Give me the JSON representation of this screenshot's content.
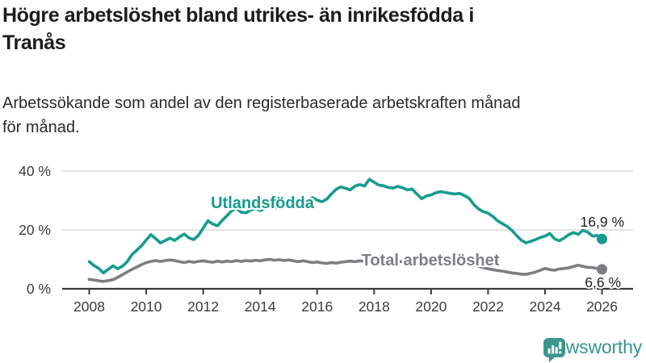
{
  "page": {
    "title_lines": [
      "Högre arbetslöshet bland utrikes- än inrikesfödda i",
      "Tranås"
    ],
    "subtitle_lines": [
      "Arbetssökande som andel av den registerbaserade arbetskraften månad",
      "för månad."
    ]
  },
  "chart_data": {
    "type": "line",
    "title": "Högre arbetslöshet bland utrikes- än inrikesfödda i Tranås",
    "subtitle": "Arbetssökande som andel av den registerbaserade arbetskraften månad för månad.",
    "xlabel": "",
    "ylabel": "",
    "x_ticks": [
      "2008",
      "2010",
      "2012",
      "2014",
      "2016",
      "2018",
      "2020",
      "2022",
      "2024",
      "2026"
    ],
    "y_ticks": [
      {
        "label": "0 %",
        "value": 0
      },
      {
        "label": "20 %",
        "value": 20
      },
      {
        "label": "40 %",
        "value": 40
      }
    ],
    "x_range": [
      2008,
      2026.1
    ],
    "ylim": [
      0,
      44
    ],
    "grid": "horizontal",
    "legend_position": "inline-labels",
    "x_start": 2008,
    "x_step": 0.1666667,
    "series": [
      {
        "name": "Utlandsfödda",
        "color": "#169b8e",
        "end_label": "16,9 %",
        "end_value": 16.9,
        "values": [
          9.2,
          7.9,
          6.9,
          5.4,
          6.6,
          7.8,
          6.8,
          7.7,
          9.2,
          11.6,
          13.1,
          14.6,
          16.6,
          18.4,
          17.0,
          15.6,
          16.4,
          17.2,
          16.4,
          17.6,
          18.6,
          17.3,
          16.7,
          18.1,
          20.6,
          23.1,
          22.0,
          21.4,
          23.2,
          24.8,
          26.5,
          27.3,
          26.0,
          25.8,
          26.7,
          27.2,
          26.6,
          27.2,
          27.8,
          27.3,
          27.9,
          28.3,
          27.9,
          28.4,
          28.9,
          29.4,
          30.2,
          31.0,
          30.1,
          29.6,
          30.4,
          32.2,
          33.8,
          34.6,
          34.1,
          33.6,
          34.9,
          35.4,
          34.9,
          37.2,
          36.2,
          35.2,
          35.0,
          34.4,
          34.2,
          34.8,
          34.3,
          33.6,
          33.9,
          32.2,
          30.6,
          31.5,
          31.9,
          32.6,
          33.0,
          32.7,
          32.4,
          32.2,
          32.4,
          31.7,
          30.7,
          28.6,
          27.1,
          26.2,
          25.7,
          24.6,
          23.1,
          22.1,
          21.2,
          19.9,
          18.1,
          16.5,
          15.6,
          16.1,
          16.7,
          17.4,
          17.9,
          18.8,
          17.0,
          16.3,
          17.2,
          18.4,
          19.1,
          18.5,
          19.9,
          19.2,
          17.9,
          18.1,
          16.9
        ]
      },
      {
        "name": "Total arbetslöshet",
        "color": "#7d7d82",
        "end_label": "6,6 %",
        "end_value": 6.6,
        "values": [
          3.2,
          3.0,
          2.7,
          2.5,
          2.8,
          3.1,
          3.9,
          4.8,
          5.7,
          6.6,
          7.4,
          8.2,
          8.9,
          9.3,
          9.6,
          9.3,
          9.6,
          9.8,
          9.6,
          9.2,
          8.9,
          9.3,
          9.0,
          9.3,
          9.5,
          9.2,
          9.0,
          9.4,
          9.1,
          9.4,
          9.2,
          9.6,
          9.3,
          9.6,
          9.4,
          9.7,
          9.5,
          9.8,
          10.0,
          9.7,
          9.9,
          9.6,
          9.8,
          9.5,
          9.2,
          9.5,
          9.2,
          8.9,
          9.1,
          8.8,
          8.6,
          8.9,
          8.7,
          9.0,
          9.2,
          9.4,
          9.2,
          9.5,
          9.3,
          9.6,
          9.4,
          9.6,
          9.3,
          9.5,
          9.2,
          9.4,
          9.1,
          8.9,
          9.2,
          8.9,
          8.7,
          9.0,
          9.2,
          9.6,
          9.9,
          9.7,
          9.4,
          9.2,
          9.0,
          8.7,
          8.4,
          8.0,
          7.6,
          7.2,
          6.8,
          6.5,
          6.2,
          6.0,
          5.7,
          5.4,
          5.2,
          5.0,
          4.9,
          5.3,
          5.7,
          6.3,
          6.9,
          6.5,
          6.3,
          6.7,
          6.9,
          7.1,
          7.6,
          8.0,
          7.6,
          7.3,
          7.2,
          6.9,
          6.6
        ]
      }
    ]
  },
  "logo": {
    "text": "Newsworthy",
    "icon": "newsworthy-speech-bubble-chart-icon",
    "color": "#38948c"
  }
}
